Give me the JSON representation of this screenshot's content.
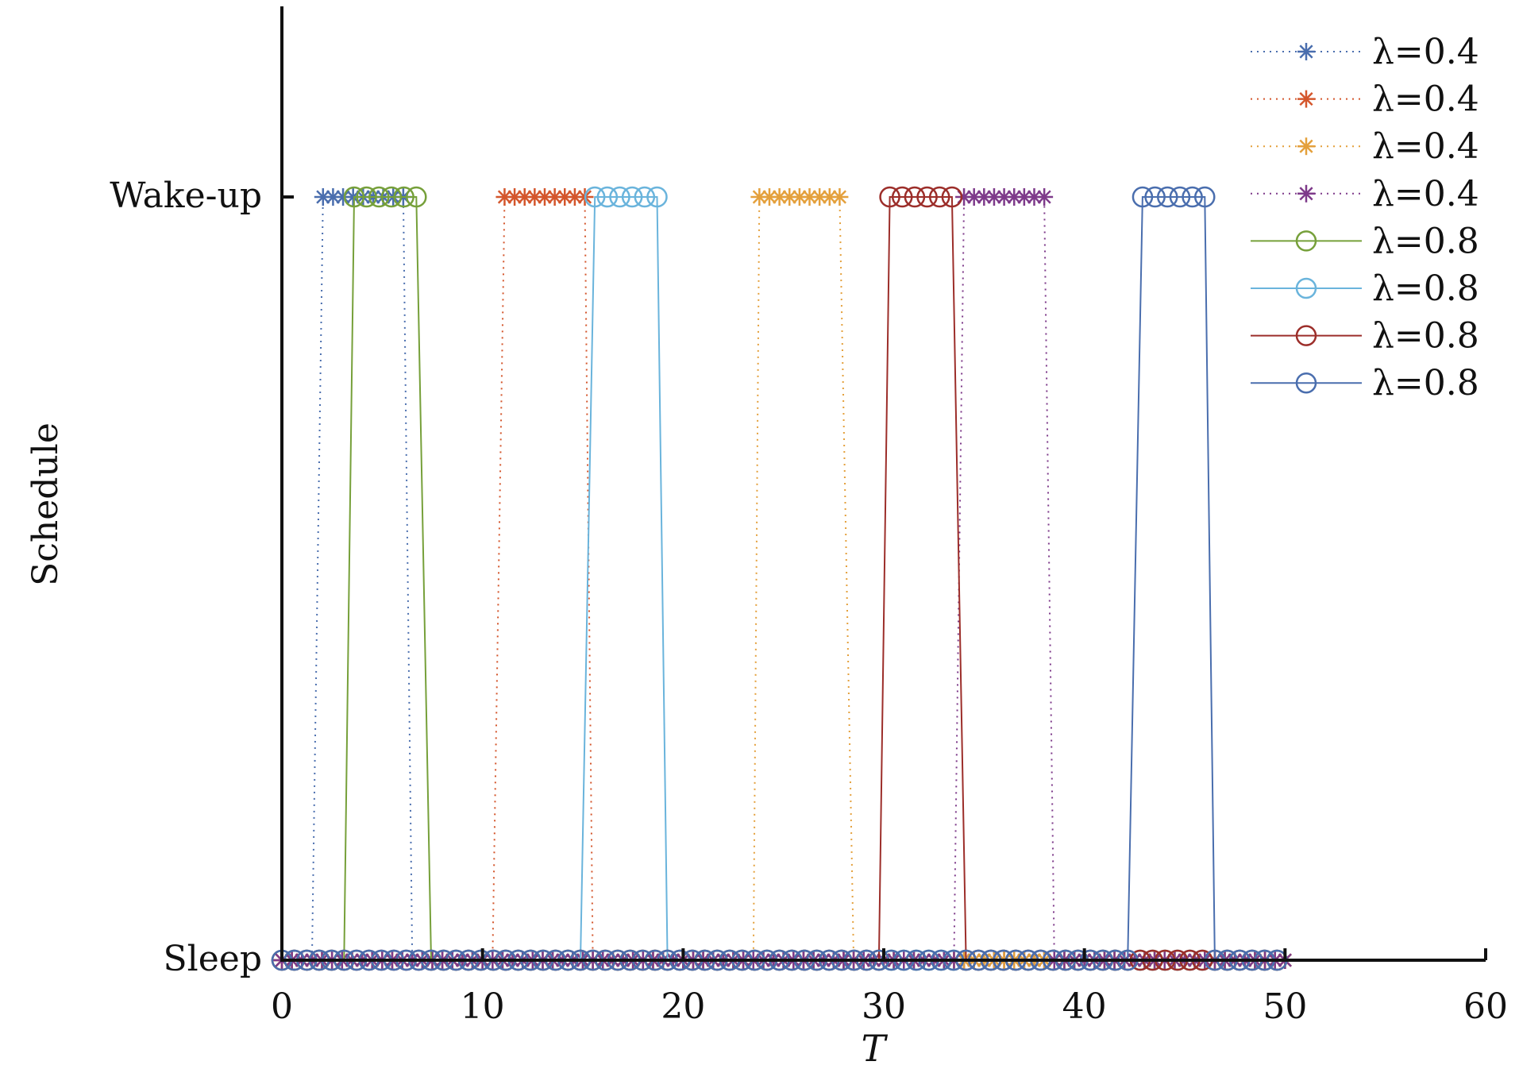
{
  "chart_data": {
    "type": "line",
    "title": "",
    "xlabel": "T",
    "ylabel": "Schedule",
    "xlim": [
      0,
      60
    ],
    "xticks": [
      "0",
      "10",
      "20",
      "30",
      "40",
      "50",
      "60"
    ],
    "yticks": [
      "Sleep",
      "Wake-up"
    ],
    "grid": false,
    "legend_position": "top-right",
    "series": [
      {
        "name": "λ=0.4",
        "color": "#4a6eae",
        "marker": "star",
        "line": "dotted",
        "x_start": 0,
        "x_end": 50,
        "step": 0.5,
        "wake_from": 2.05,
        "wake_to": 6.1
      },
      {
        "name": "λ=0.4",
        "color": "#d4562c",
        "marker": "star",
        "line": "dotted",
        "x_start": 0,
        "x_end": 50,
        "step": 0.5,
        "wake_from": 11.1,
        "wake_to": 15.2
      },
      {
        "name": "λ=0.4",
        "color": "#e4a03c",
        "marker": "star",
        "line": "dotted",
        "x_start": 0,
        "x_end": 50,
        "step": 0.5,
        "wake_from": 23.8,
        "wake_to": 27.8
      },
      {
        "name": "λ=0.4",
        "color": "#7e3a8a",
        "marker": "star",
        "line": "dotted",
        "x_start": 0,
        "x_end": 50,
        "step": 0.5,
        "wake_from": 34.0,
        "wake_to": 38.1
      },
      {
        "name": "λ=0.8",
        "color": "#76a03a",
        "marker": "circle",
        "line": "solid",
        "x_start": 0,
        "x_end": 50,
        "step": 0.62,
        "wake_from": 3.6,
        "wake_to": 6.7
      },
      {
        "name": "λ=0.8",
        "color": "#6ab4dc",
        "marker": "circle",
        "line": "solid",
        "x_start": 0,
        "x_end": 50,
        "step": 0.62,
        "wake_from": 15.6,
        "wake_to": 18.8
      },
      {
        "name": "λ=0.8",
        "color": "#9c2e2a",
        "marker": "circle",
        "line": "solid",
        "x_start": 0,
        "x_end": 50,
        "step": 0.62,
        "wake_from": 30.3,
        "wake_to": 33.4
      },
      {
        "name": "λ=0.8",
        "color": "#4a6eae",
        "marker": "circle",
        "line": "solid",
        "x_start": 0,
        "x_end": 50,
        "step": 0.62,
        "wake_from": 42.9,
        "wake_to": 46.0
      }
    ]
  }
}
